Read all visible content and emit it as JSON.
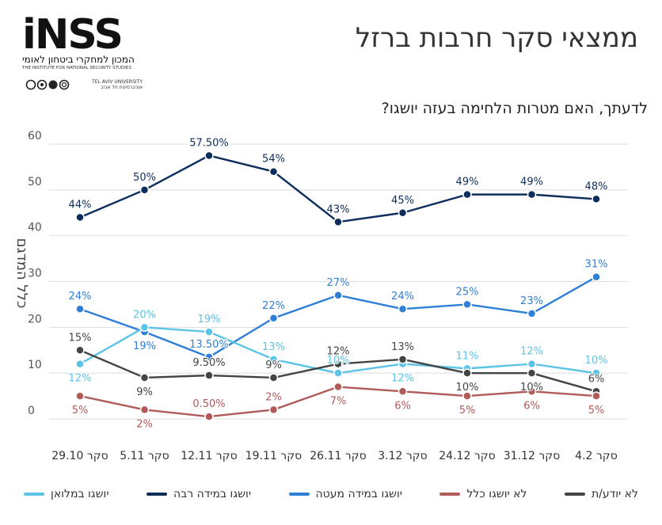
{
  "header": {
    "title": "ממצאי סקר חרבות ברזל",
    "question": "לדעתך, האם מטרות הלחימה בעזה יושגו?"
  },
  "logo": {
    "mark": "iNSS",
    "hebrew": "המכון למחקרי ביטחון לאומי",
    "english": "THE INSTITUTE FOR NATIONAL SECURITY STUDIES",
    "university_he": "אוניברסיטת תל אביב",
    "university_en": "TEL AVIV UNIVERSITY"
  },
  "chart_data": {
    "type": "line",
    "title": "לדעתך, האם מטרות הלחימה בעזה יושגו?",
    "ylabel": "כלל המדגם",
    "xlabel": "",
    "ylim": [
      0,
      60
    ],
    "yticks": [
      0,
      10,
      20,
      30,
      40,
      50,
      60
    ],
    "grid": true,
    "legend_position": "bottom",
    "categories": [
      "סקר 29.10",
      "סקר 5.11",
      "סקר 12.11",
      "סקר 19.11",
      "סקר 26.11",
      "סקר 3.12",
      "סקר 24.12",
      "סקר 31.12",
      "סקר 4.2"
    ],
    "series": [
      {
        "name": "יושגו במידה רבה",
        "color": "#0d2e5c",
        "values": [
          44,
          50,
          57.5,
          54,
          43,
          45,
          49,
          49,
          48
        ],
        "labels": [
          "44%",
          "50%",
          "57.50%",
          "54%",
          "43%",
          "45%",
          "49%",
          "49%",
          "48%"
        ],
        "label_pos": [
          "above",
          "above",
          "above",
          "above",
          "above",
          "above",
          "above",
          "above",
          "above"
        ]
      },
      {
        "name": "יושגו במידה מעטה",
        "color": "#2f7fd6",
        "values": [
          24,
          19,
          13.5,
          22,
          27,
          24,
          25,
          23,
          31
        ],
        "labels": [
          "24%",
          "19%",
          "13.50%",
          "22%",
          "27%",
          "24%",
          "25%",
          "23%",
          "31%"
        ],
        "label_pos": [
          "above",
          "below",
          "above",
          "above",
          "above",
          "above",
          "above",
          "above",
          "above"
        ]
      },
      {
        "name": "יושגו במלואן",
        "color": "#5bc4e6",
        "values": [
          12,
          20,
          19,
          13,
          10,
          12,
          11,
          12,
          10
        ],
        "labels": [
          "12%",
          "20%",
          "19%",
          "13%",
          "10%",
          "12%",
          "11%",
          "12%",
          "10%"
        ],
        "label_pos": [
          "below",
          "above",
          "above",
          "above",
          "above",
          "below",
          "above",
          "above",
          "above"
        ]
      },
      {
        "name": "לא יודע/ת",
        "color": "#444444",
        "values": [
          15,
          9,
          9.5,
          9,
          12,
          13,
          10,
          10,
          6
        ],
        "labels": [
          "15%",
          "9%",
          "9.50%",
          "9%",
          "12%",
          "13%",
          "10%",
          "10%",
          "6%"
        ],
        "label_pos": [
          "above",
          "below",
          "above",
          "above",
          "above",
          "above",
          "below",
          "below",
          "above"
        ]
      },
      {
        "name": "לא יושגו כלל",
        "color": "#b05a5a",
        "values": [
          5,
          2,
          0.5,
          2,
          7,
          6,
          5,
          6,
          5
        ],
        "labels": [
          "5%",
          "2%",
          "0.50%",
          "2%",
          "7%",
          "6%",
          "5%",
          "6%",
          "5%"
        ],
        "label_pos": [
          "below",
          "below",
          "above",
          "above",
          "below",
          "below",
          "below",
          "below",
          "below"
        ]
      }
    ]
  },
  "legend": [
    {
      "name": "יושגו במלואן",
      "color": "#5bc4e6"
    },
    {
      "name": "יושגו במידה רבה",
      "color": "#0d2e5c"
    },
    {
      "name": "יושגו במידה מעטה",
      "color": "#2f7fd6"
    },
    {
      "name": "לא יושגו כלל",
      "color": "#b05a5a"
    },
    {
      "name": "לא יודע/ת",
      "color": "#444444"
    }
  ]
}
